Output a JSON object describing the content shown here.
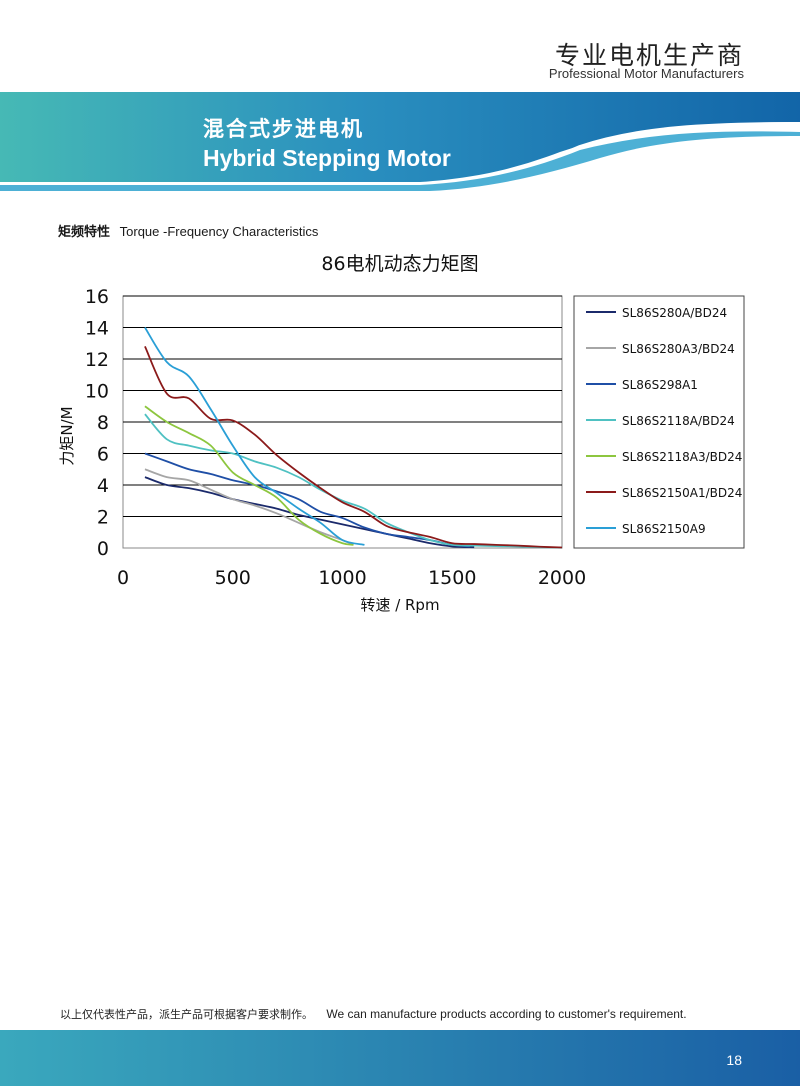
{
  "header": {
    "brand_cn": "专业电机生产商",
    "brand_en": "Professional Motor Manufacturers",
    "title_cn": "混合式步进电机",
    "title_en": "Hybrid Stepping Motor"
  },
  "section": {
    "title_cn": "矩频特性",
    "title_en": "Torque -Frequency Characteristics"
  },
  "colors": {
    "banner_dark": "#1265a8",
    "banner_light": "#3bb3b8",
    "footer_dark": "#1a5fa5",
    "footer_light": "#3aa8bd"
  },
  "chart_data": {
    "type": "line",
    "title": "86电机动态力矩图",
    "xlabel": "转速 / Rpm",
    "ylabel": "力矩N/M",
    "xlim": [
      0,
      2000
    ],
    "ylim": [
      0,
      16
    ],
    "xticks": [
      0,
      500,
      1000,
      1500,
      2000
    ],
    "yticks": [
      0,
      2,
      4,
      6,
      8,
      10,
      12,
      14,
      16
    ],
    "grid": "horizontal",
    "legend_position": "right",
    "series": [
      {
        "name": "SL86S280A/BD24",
        "color": "#1b2a6b",
        "x": [
          100,
          200,
          300,
          400,
          500,
          600,
          700,
          800,
          900,
          1000,
          1100,
          1200,
          1300,
          1400,
          1500,
          1600
        ],
        "y": [
          4.5,
          4.0,
          3.8,
          3.5,
          3.1,
          2.8,
          2.5,
          2.1,
          1.8,
          1.5,
          1.2,
          0.9,
          0.6,
          0.3,
          0.1,
          0.05
        ]
      },
      {
        "name": "SL86S280A3/BD24",
        "color": "#a6a6a6",
        "x": [
          100,
          200,
          300,
          400,
          500,
          600,
          700,
          800,
          900,
          1000,
          1050
        ],
        "y": [
          5.0,
          4.5,
          4.3,
          3.7,
          3.1,
          2.7,
          2.2,
          1.6,
          1.0,
          0.5,
          0.2
        ]
      },
      {
        "name": "SL86S298A1",
        "color": "#1f4fa6",
        "x": [
          100,
          200,
          300,
          400,
          500,
          600,
          700,
          800,
          900,
          1000,
          1100,
          1200,
          1300,
          1400,
          1500,
          1580
        ],
        "y": [
          6.0,
          5.5,
          5.0,
          4.7,
          4.3,
          4.0,
          3.6,
          3.1,
          2.3,
          1.9,
          1.3,
          0.9,
          0.7,
          0.5,
          0.2,
          0.1
        ]
      },
      {
        "name": "SL86S2118A/BD24",
        "color": "#4fc1c2",
        "x": [
          100,
          200,
          300,
          400,
          500,
          600,
          700,
          800,
          900,
          1000,
          1100,
          1200,
          1300,
          1400,
          1500,
          1600,
          1700,
          1800,
          1900,
          2000
        ],
        "y": [
          8.5,
          6.9,
          6.5,
          6.2,
          6.0,
          5.5,
          5.1,
          4.5,
          3.7,
          3.0,
          2.5,
          1.6,
          1.0,
          0.5,
          0.2,
          0.15,
          0.12,
          0.1,
          0.05,
          0.02
        ]
      },
      {
        "name": "SL86S2118A3/BD24",
        "color": "#8dc63f",
        "x": [
          100,
          200,
          300,
          400,
          500,
          600,
          700,
          800,
          900,
          1000,
          1050
        ],
        "y": [
          9.0,
          8.0,
          7.3,
          6.5,
          4.8,
          4.0,
          3.2,
          1.8,
          0.9,
          0.3,
          0.2
        ]
      },
      {
        "name": "SL86S2150A1/BD24",
        "color": "#8b1a1a",
        "x": [
          100,
          200,
          300,
          400,
          500,
          600,
          700,
          800,
          900,
          1000,
          1100,
          1200,
          1300,
          1400,
          1500,
          1600,
          1700,
          1800,
          1900,
          2000
        ],
        "y": [
          12.8,
          9.8,
          9.5,
          8.2,
          8.1,
          7.2,
          5.9,
          4.8,
          3.8,
          2.9,
          2.3,
          1.4,
          1.0,
          0.7,
          0.3,
          0.25,
          0.2,
          0.15,
          0.08,
          0.03
        ]
      },
      {
        "name": "SL86S2150A9",
        "color": "#2a9fd6",
        "x": [
          100,
          200,
          300,
          400,
          500,
          600,
          700,
          800,
          900,
          1000,
          1100
        ],
        "y": [
          14.0,
          11.8,
          10.9,
          8.8,
          6.5,
          4.5,
          3.5,
          2.5,
          1.6,
          0.5,
          0.2
        ]
      }
    ]
  },
  "footer": {
    "note_cn": "以上仅代表性产品，派生产品可根据客户要求制作。",
    "note_en": "We can manufacture products according to customer's requirement.",
    "page_number": "18"
  }
}
